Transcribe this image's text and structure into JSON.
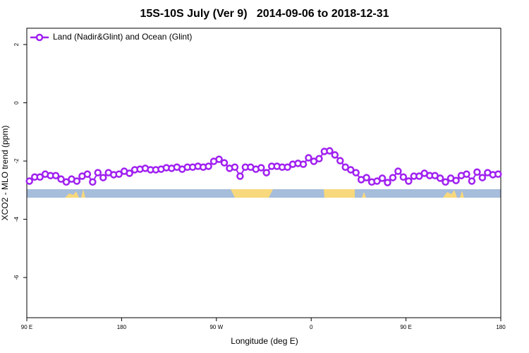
{
  "chart_data": {
    "type": "line",
    "title": "15S-10S July (Ver 9)   2014-09-06 to 2018-12-31",
    "x_label": "Longitude (deg E)",
    "y_label": "XCO2 - MLO trend (ppm)",
    "xlim": [
      90,
      540
    ],
    "ylim": [
      -7.38,
      2.56
    ],
    "xticks": [
      {
        "value": 90,
        "label": "90 E"
      },
      {
        "value": 180,
        "label": "180"
      },
      {
        "value": 270,
        "label": "90 W"
      },
      {
        "value": 360,
        "label": "0"
      },
      {
        "value": 450,
        "label": "90 E"
      },
      {
        "value": 540,
        "label": "180"
      }
    ],
    "yticks": [
      2,
      0,
      -2,
      -4,
      -6
    ],
    "legend": "top-left",
    "x": [
      92.5,
      97.5,
      102.5,
      107.5,
      112.5,
      117.5,
      122.5,
      127.5,
      132.5,
      137.5,
      142.5,
      147.5,
      152.5,
      157.5,
      162.5,
      167.5,
      172.5,
      177.5,
      182.5,
      187.5,
      192.5,
      197.5,
      202.5,
      207.5,
      212.5,
      217.5,
      222.5,
      227.5,
      232.5,
      237.5,
      242.5,
      247.5,
      252.5,
      257.5,
      262.5,
      267.5,
      272.5,
      277.5,
      282.5,
      287.5,
      292.5,
      297.5,
      302.5,
      307.5,
      312.5,
      317.5,
      322.5,
      327.5,
      332.5,
      337.5,
      342.5,
      347.5,
      352.5,
      357.5,
      362.5,
      367.5,
      372.5,
      377.5,
      382.5,
      387.5,
      392.5,
      397.5,
      402.5,
      407.5,
      412.5,
      417.5,
      422.5,
      427.5,
      432.5,
      437.5,
      442.5,
      447.5,
      452.5,
      457.5,
      462.5,
      467.5,
      472.5,
      477.5,
      482.5,
      487.5,
      492.5,
      497.5,
      502.5,
      507.5,
      512.5,
      517.5,
      522.5,
      527.5,
      532.5,
      537.5
    ],
    "series": [
      {
        "name": "Land (Nadir&Glint) and Ocean (Glint)",
        "color": "#a020f0",
        "values": [
          -2.69,
          -2.55,
          -2.55,
          -2.45,
          -2.5,
          -2.5,
          -2.62,
          -2.72,
          -2.62,
          -2.69,
          -2.52,
          -2.45,
          -2.72,
          -2.4,
          -2.57,
          -2.4,
          -2.47,
          -2.45,
          -2.35,
          -2.42,
          -2.3,
          -2.28,
          -2.25,
          -2.3,
          -2.3,
          -2.28,
          -2.23,
          -2.25,
          -2.21,
          -2.28,
          -2.21,
          -2.21,
          -2.18,
          -2.21,
          -2.18,
          -2.01,
          -1.94,
          -2.06,
          -2.25,
          -2.21,
          -2.52,
          -2.21,
          -2.21,
          -2.28,
          -2.23,
          -2.4,
          -2.18,
          -2.18,
          -2.21,
          -2.21,
          -2.11,
          -2.08,
          -2.11,
          -1.89,
          -2.01,
          -1.92,
          -1.67,
          -1.65,
          -1.79,
          -1.99,
          -2.21,
          -2.3,
          -2.4,
          -2.64,
          -2.57,
          -2.72,
          -2.69,
          -2.59,
          -2.74,
          -2.57,
          -2.35,
          -2.55,
          -2.69,
          -2.52,
          -2.52,
          -2.42,
          -2.5,
          -2.5,
          -2.59,
          -2.72,
          -2.59,
          -2.67,
          -2.5,
          -2.45,
          -2.69,
          -2.38,
          -2.57,
          -2.4,
          -2.47,
          -2.45
        ]
      }
    ]
  }
}
